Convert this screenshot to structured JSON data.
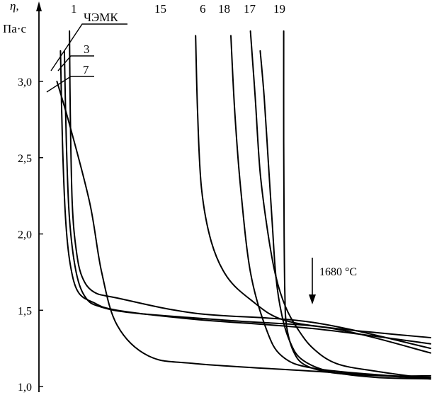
{
  "chart_data": {
    "type": "line",
    "ylabel_symbol": "η,",
    "ylabel_unit": "Па·с",
    "ylim": [
      1.0,
      3.3
    ],
    "yticks": [
      "1,0",
      "1,5",
      "2,0",
      "2,5",
      "3,0"
    ],
    "ytick_values": [
      1.0,
      1.5,
      2.0,
      2.5,
      3.0
    ],
    "xlim": [
      0,
      100
    ],
    "grid": false,
    "annotation": "1680 °C",
    "series": [
      {
        "name": "ЧЭМК",
        "values": [
          [
            5.5,
            3.2
          ],
          [
            6.0,
            2.6
          ],
          [
            6.8,
            2.1
          ],
          [
            8.0,
            1.8
          ],
          [
            10,
            1.62
          ],
          [
            14,
            1.55
          ],
          [
            20,
            1.5
          ],
          [
            40,
            1.44
          ],
          [
            70,
            1.38
          ],
          [
            100,
            1.28
          ]
        ]
      },
      {
        "name": "1",
        "values": [
          [
            7.8,
            3.33
          ],
          [
            8.0,
            2.8
          ],
          [
            8.5,
            2.2
          ],
          [
            9.5,
            1.9
          ],
          [
            11,
            1.72
          ],
          [
            14,
            1.62
          ],
          [
            20,
            1.58
          ],
          [
            40,
            1.48
          ],
          [
            70,
            1.42
          ],
          [
            100,
            1.25
          ]
        ]
      },
      {
        "name": "3",
        "values": [
          [
            6.5,
            3.2
          ],
          [
            7.0,
            2.6
          ],
          [
            7.8,
            2.1
          ],
          [
            9.5,
            1.75
          ],
          [
            12,
            1.58
          ],
          [
            16,
            1.52
          ],
          [
            25,
            1.48
          ],
          [
            50,
            1.43
          ],
          [
            75,
            1.38
          ],
          [
            100,
            1.22
          ]
        ]
      },
      {
        "name": "7",
        "values": [
          [
            4.6,
            3.0
          ],
          [
            8,
            2.7
          ],
          [
            13,
            2.2
          ],
          [
            16,
            1.75
          ],
          [
            20,
            1.4
          ],
          [
            28,
            1.2
          ],
          [
            40,
            1.15
          ],
          [
            70,
            1.1
          ],
          [
            100,
            1.05
          ]
        ]
      },
      {
        "name": "15",
        "values": [
          [
            40,
            3.3
          ],
          [
            40.5,
            2.8
          ],
          [
            41.5,
            2.3
          ],
          [
            44,
            1.95
          ],
          [
            48,
            1.72
          ],
          [
            54,
            1.57
          ],
          [
            62,
            1.44
          ],
          [
            76,
            1.38
          ],
          [
            100,
            1.32
          ]
        ]
      },
      {
        "name": "6",
        "values": [
          [
            49,
            3.3
          ],
          [
            50,
            2.8
          ],
          [
            51.5,
            2.3
          ],
          [
            54,
            1.75
          ],
          [
            58,
            1.38
          ],
          [
            62,
            1.2
          ],
          [
            70,
            1.12
          ],
          [
            90,
            1.07
          ],
          [
            100,
            1.06
          ]
        ]
      },
      {
        "name": "18",
        "values": [
          [
            54,
            3.33
          ],
          [
            55.2,
            2.9
          ],
          [
            56.5,
            2.4
          ],
          [
            58.5,
            2.0
          ],
          [
            60.5,
            1.72
          ],
          [
            63,
            1.52
          ],
          [
            66,
            1.38
          ],
          [
            70,
            1.25
          ],
          [
            76,
            1.15
          ],
          [
            86,
            1.1
          ],
          [
            100,
            1.05
          ]
        ]
      },
      {
        "name": "17",
        "values": [
          [
            56.5,
            3.2
          ],
          [
            57.5,
            2.9
          ],
          [
            58.5,
            2.5
          ],
          [
            59.5,
            2.1
          ],
          [
            60.5,
            1.72
          ],
          [
            62,
            1.47
          ],
          [
            64,
            1.3
          ],
          [
            67,
            1.18
          ],
          [
            74,
            1.1
          ],
          [
            86,
            1.06
          ],
          [
            100,
            1.05
          ]
        ]
      },
      {
        "name": "19",
        "values": [
          [
            62.5,
            3.33
          ],
          [
            62.5,
            2.6
          ],
          [
            62.6,
            2.0
          ],
          [
            62.8,
            1.6
          ],
          [
            63.2,
            1.4
          ],
          [
            65,
            1.23
          ],
          [
            68,
            1.14
          ],
          [
            75,
            1.09
          ],
          [
            88,
            1.07
          ],
          [
            100,
            1.07
          ]
        ]
      }
    ]
  }
}
